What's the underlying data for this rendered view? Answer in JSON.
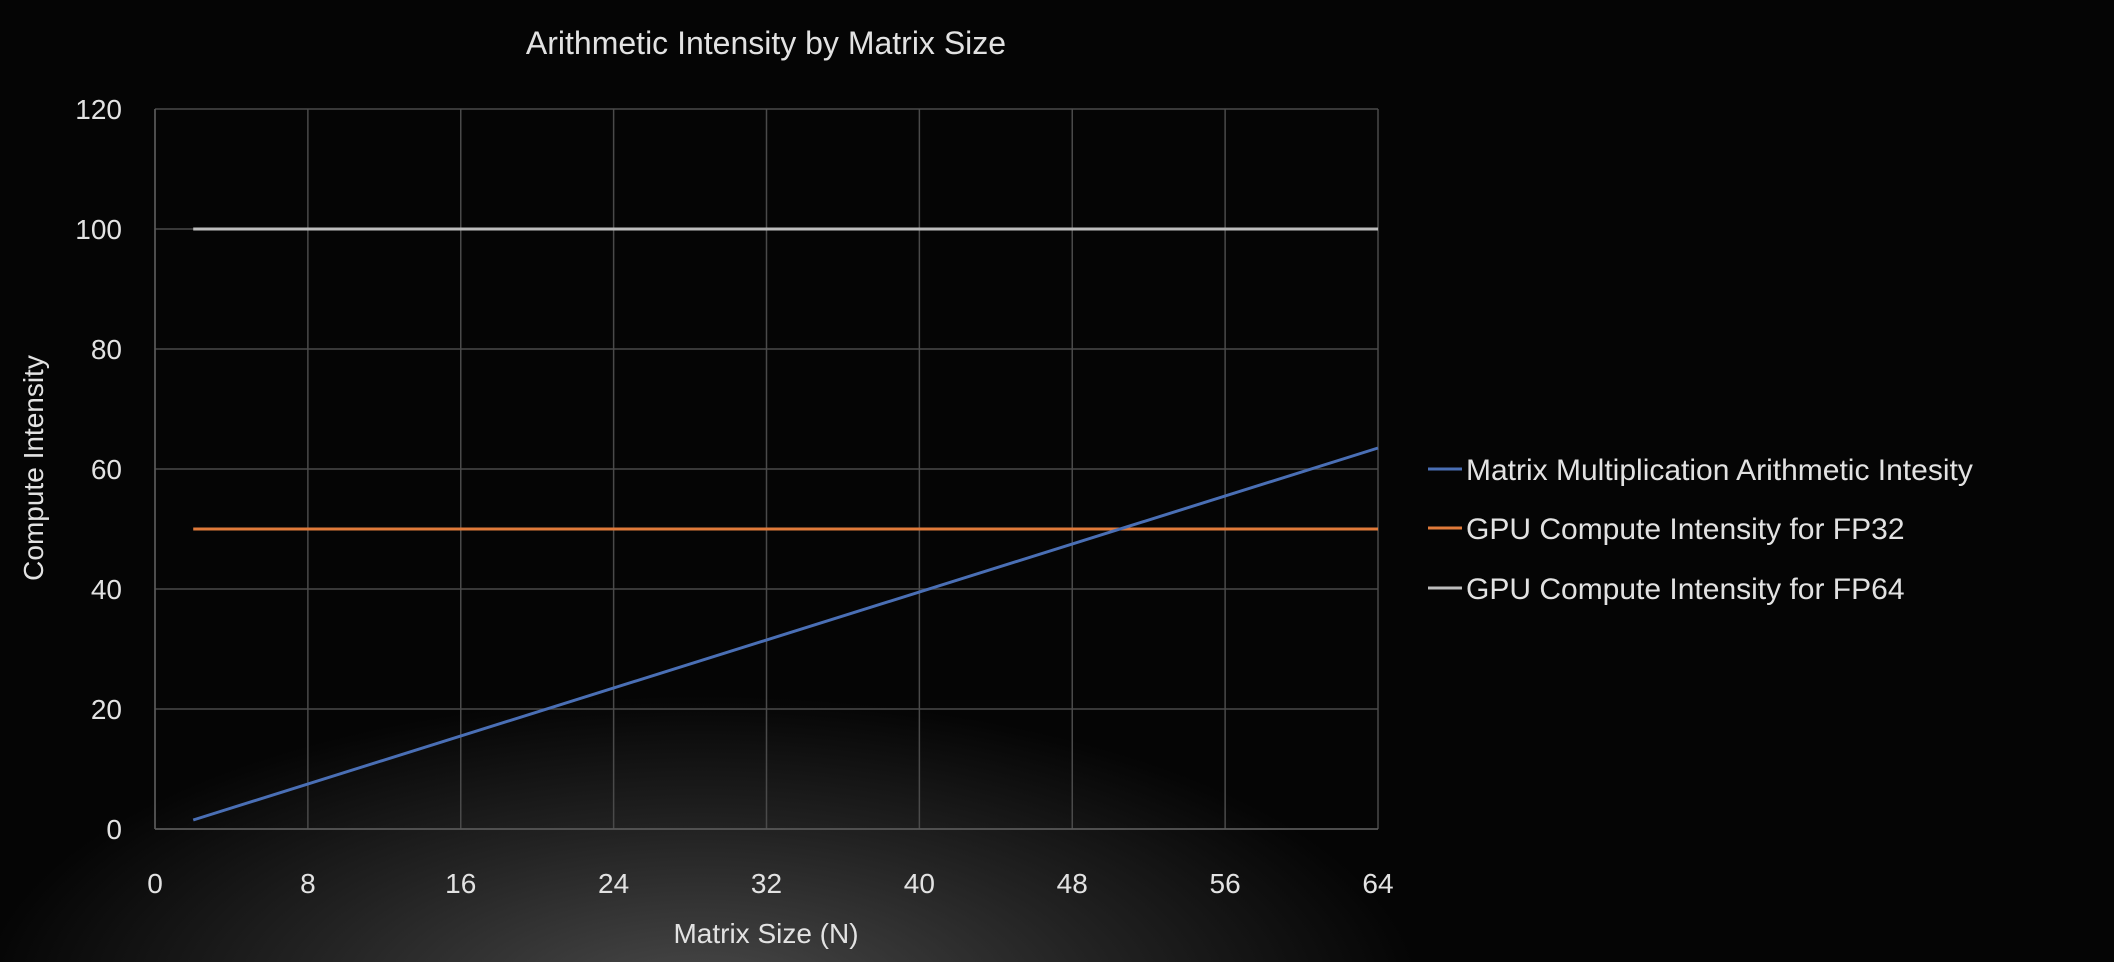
{
  "chart_data": {
    "type": "line",
    "title": "Arithmetic Intensity by Matrix Size",
    "xlabel": "Matrix Size (N)",
    "ylabel": "Compute Intensity",
    "xlim": [
      0,
      64
    ],
    "ylim": [
      0,
      120
    ],
    "xticks": [
      "0",
      "8",
      "16",
      "24",
      "32",
      "40",
      "48",
      "56",
      "64"
    ],
    "yticks": [
      "0",
      "20",
      "40",
      "60",
      "80",
      "100",
      "120"
    ],
    "grid": true,
    "legend_position": "right",
    "series": [
      {
        "name": "Matrix Multiplication Arithmetic Intesity",
        "color": "#4a6fb5",
        "x": [
          2,
          64
        ],
        "y": [
          1.5,
          63.5
        ]
      },
      {
        "name": "GPU Compute Intensity for FP32",
        "color": "#e07a3a",
        "x": [
          2,
          64
        ],
        "y": [
          50,
          50
        ]
      },
      {
        "name": "GPU Compute Intensity for FP64",
        "color": "#bdbdbd",
        "x": [
          2,
          64
        ],
        "y": [
          100,
          100
        ]
      }
    ]
  }
}
